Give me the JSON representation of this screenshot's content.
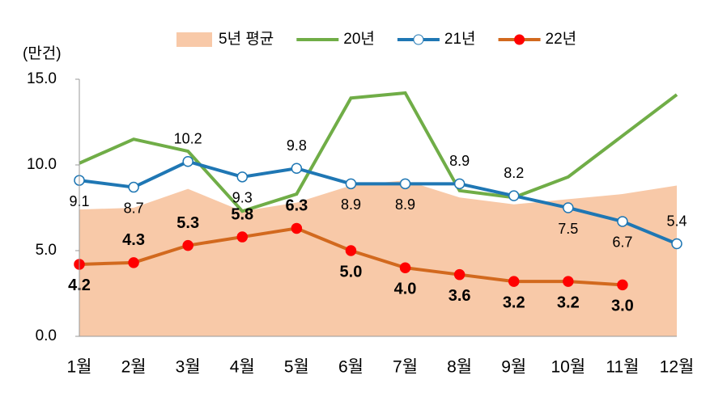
{
  "chart_data": {
    "type": "line",
    "y_axis_label": "(만건)",
    "categories": [
      "1월",
      "2월",
      "3월",
      "4월",
      "5월",
      "6월",
      "7월",
      "8월",
      "9월",
      "10월",
      "11월",
      "12월"
    ],
    "series": [
      {
        "name": "5년 평균",
        "kind": "area",
        "color": "#f8c9a8",
        "values": [
          7.4,
          7.5,
          8.6,
          7.3,
          7.8,
          8.8,
          9.1,
          8.1,
          7.7,
          8.0,
          8.3,
          8.8
        ]
      },
      {
        "name": "20년",
        "kind": "line",
        "color": "#70ad47",
        "values": [
          10.1,
          11.5,
          10.8,
          7.3,
          8.3,
          13.9,
          14.2,
          8.5,
          8.1,
          9.3,
          11.7,
          14.1
        ]
      },
      {
        "name": "21년",
        "kind": "line",
        "color": "#1f77b4",
        "marker_fill": "#ffffff",
        "values": [
          9.1,
          8.7,
          10.2,
          9.3,
          9.8,
          8.9,
          8.9,
          8.9,
          8.2,
          7.5,
          6.7,
          5.4
        ],
        "value_labels": [
          "9.1",
          "8.7",
          "10.2",
          "9.3",
          "9.8",
          "8.9",
          "8.9",
          "8.9",
          "8.2",
          "7.5",
          "6.7",
          "5.4"
        ]
      },
      {
        "name": "22년",
        "kind": "line",
        "color": "#d2691e",
        "marker_fill": "#ff0000",
        "values": [
          4.2,
          4.3,
          5.3,
          5.8,
          6.3,
          5.0,
          4.0,
          3.6,
          3.2,
          3.2,
          3.0,
          null
        ],
        "value_labels": [
          "4.2",
          "4.3",
          "5.3",
          "5.8",
          "6.3",
          "5.0",
          "4.0",
          "3.6",
          "3.2",
          "3.2",
          "3.0",
          null
        ]
      }
    ],
    "ylim": [
      0,
      15
    ],
    "yticks": [
      {
        "value": 0,
        "label": "0.0"
      },
      {
        "value": 5,
        "label": "5.0"
      },
      {
        "value": 10,
        "label": "10.0"
      },
      {
        "value": 15,
        "label": "15.0"
      }
    ],
    "legend": "top"
  }
}
